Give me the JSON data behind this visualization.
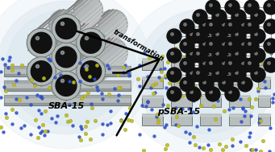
{
  "bg_color": "#ffffff",
  "left_label": "SBA-15",
  "right_label": "pSBA-15",
  "arrow_label": "transformation",
  "slab_color": "#b8bebe",
  "slab_dark": "#6a7070",
  "slab_mid": "#9aa0a0",
  "blue_color": "#3355cc",
  "yellow_color": "#bbbb22",
  "glow_color": "#dce8f0",
  "tube_outer": "#909898",
  "tube_mid": "#b0b8b8",
  "tube_inner": "#111111",
  "sphere_dark": "#111111",
  "sphere_mid": "#666666",
  "right_slab_dark": "#606868",
  "right_slab_light": "#aab0b0"
}
